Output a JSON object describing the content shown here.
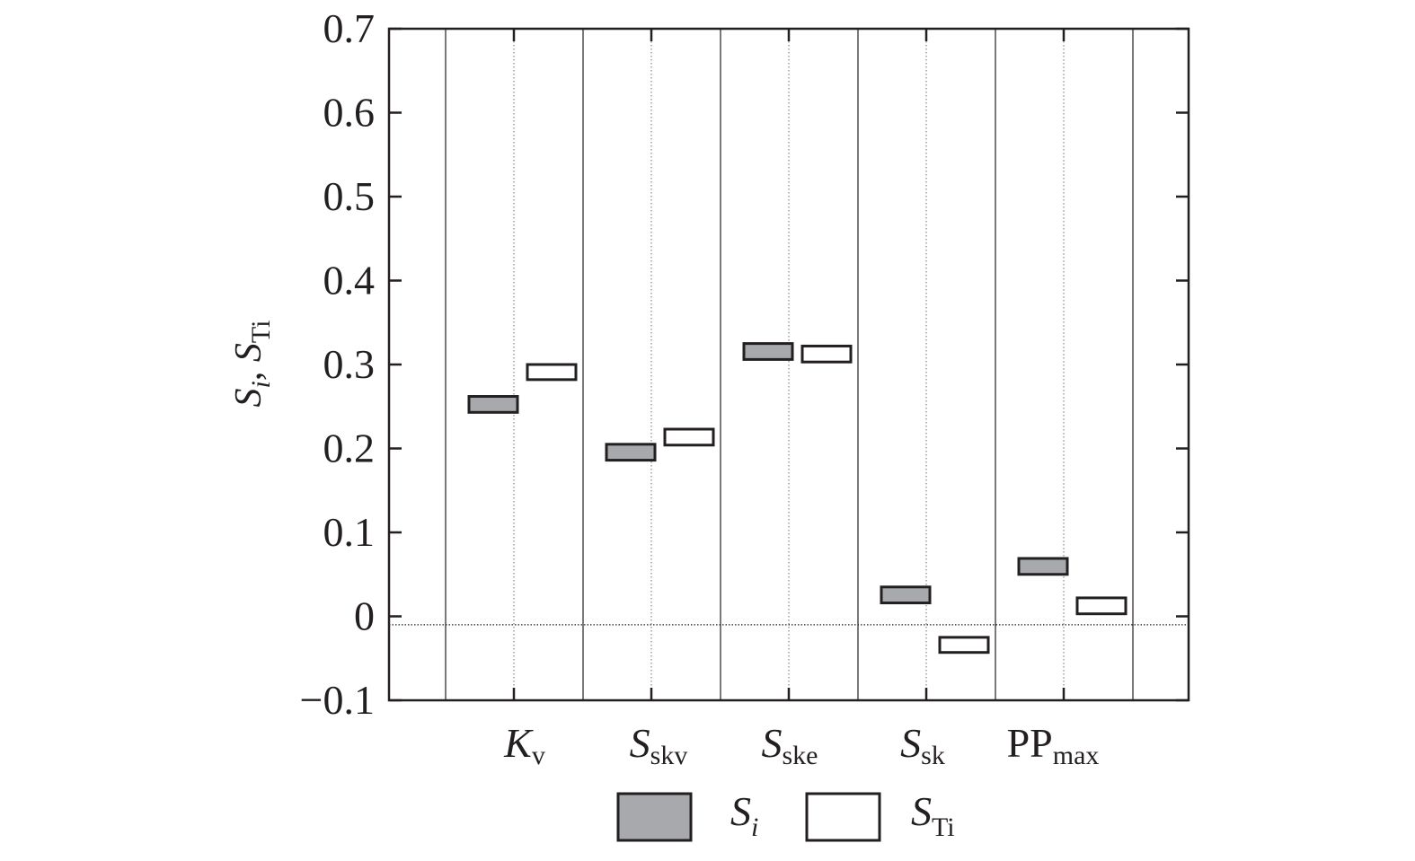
{
  "chart_data": {
    "type": "bar",
    "subtype": "floating-box",
    "ylabel": {
      "main1": "S",
      "sub1": "i",
      "sep": ", ",
      "main2": "S",
      "sub2": "Ti"
    },
    "ylim": [
      -0.1,
      0.7
    ],
    "yticks": [
      {
        "value": -0.1,
        "label": "−0.1"
      },
      {
        "value": 0,
        "label": "0"
      },
      {
        "value": 0.1,
        "label": "0.1"
      },
      {
        "value": 0.2,
        "label": "0.2"
      },
      {
        "value": 0.3,
        "label": "0.3"
      },
      {
        "value": 0.4,
        "label": "0.4"
      },
      {
        "value": 0.5,
        "label": "0.5"
      },
      {
        "value": 0.6,
        "label": "0.6"
      },
      {
        "value": 0.7,
        "label": "0.7"
      }
    ],
    "categories": [
      {
        "main": "K",
        "sub": "v",
        "italic": true
      },
      {
        "main": "S",
        "sub": "skv",
        "italic": true
      },
      {
        "main": "S",
        "sub": "ske",
        "italic": true
      },
      {
        "main": "S",
        "sub": "sk",
        "italic": true
      },
      {
        "main": "PP",
        "sub": "max",
        "italic": false
      }
    ],
    "series": [
      {
        "name": "S_i",
        "label_main": "S",
        "label_sub": "i",
        "color": "#a7a9ac",
        "ranges": [
          [
            0.243,
            0.262
          ],
          [
            0.186,
            0.205
          ],
          [
            0.306,
            0.325
          ],
          [
            0.016,
            0.035
          ],
          [
            0.05,
            0.069
          ]
        ]
      },
      {
        "name": "S_Ti",
        "label_main": "S",
        "label_sub": "Ti",
        "color": "#ffffff",
        "ranges": [
          [
            0.282,
            0.3
          ],
          [
            0.204,
            0.223
          ],
          [
            0.303,
            0.322
          ],
          [
            -0.043,
            -0.025
          ],
          [
            0.003,
            0.022
          ]
        ]
      }
    ],
    "reference_line": -0.01,
    "grid": false,
    "legend_position": "bottom"
  }
}
